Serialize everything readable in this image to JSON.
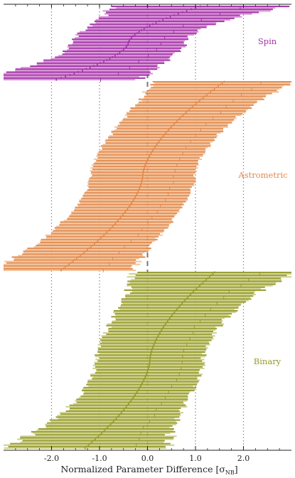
{
  "chart_data": {
    "type": "forest",
    "xlabel": "Normalized Parameter Difference [σ",
    "xlabel_sub": "NB",
    "xlabel_close": "]",
    "xlim": [
      -3.0,
      3.0
    ],
    "xticks": [
      -2.0,
      -1.0,
      0.0,
      1.0,
      2.0
    ],
    "xtick_labels": [
      "-2.0",
      "-1.0",
      "0.0",
      "1.0",
      "2.0"
    ],
    "grid": "vertical dotted at ±1σ, ±2σ; dashed at 0",
    "groups": [
      {
        "name": "Spin",
        "color_dark": "#a032a8",
        "color_light": "#d890d4",
        "count": 50,
        "center_range": [
          -1.9,
          1.1
        ],
        "half_width_range": [
          0.85,
          1.8
        ]
      },
      {
        "name": "Astrometric",
        "color_dark": "#e2884a",
        "color_light": "#f2c29a",
        "count": 130,
        "center_range": [
          -1.8,
          1.6
        ],
        "half_width_range": [
          0.9,
          1.45
        ]
      },
      {
        "name": "Binary",
        "color_dark": "#959a2a",
        "color_light": "#ccd08a",
        "count": 120,
        "center_range": [
          -1.3,
          1.4
        ],
        "half_width_range": [
          0.8,
          1.7
        ]
      }
    ]
  }
}
